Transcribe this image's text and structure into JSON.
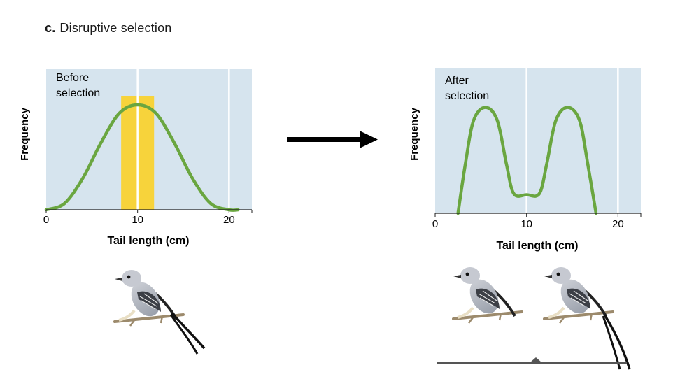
{
  "header": {
    "letter": "c.",
    "title": "Disruptive selection"
  },
  "chart_data": [
    {
      "type": "line",
      "title": "Before selection",
      "title_lines": [
        "Before",
        "selection"
      ],
      "xlabel": "Tail length (cm)",
      "ylabel": "Frequency",
      "xlim": [
        0,
        22.5
      ],
      "xticks": [
        "0",
        "10",
        "20"
      ],
      "x_tick_values": [
        0,
        10,
        20
      ],
      "grid_lines_x": [
        10,
        20
      ],
      "highlight_range": [
        8.2,
        11.8
      ],
      "highlight_color": "#f7d33b",
      "line_color": "#6aa640",
      "background_color": "#d6e4ee",
      "curve": {
        "x": [
          0,
          2,
          4,
          6,
          8,
          10,
          12,
          14,
          16,
          18,
          20,
          21
        ],
        "y": [
          0.0,
          0.06,
          0.3,
          0.64,
          0.92,
          1.0,
          0.92,
          0.64,
          0.3,
          0.06,
          0.0,
          0.0
        ]
      }
    },
    {
      "type": "line",
      "title": "After selection",
      "title_lines": [
        "After",
        "selection"
      ],
      "xlabel": "Tail length (cm)",
      "ylabel": "Frequency",
      "xlim": [
        0,
        22.5
      ],
      "xticks": [
        "0",
        "10",
        "20"
      ],
      "x_tick_values": [
        0,
        10,
        20
      ],
      "grid_lines_x": [
        10,
        20
      ],
      "line_color": "#6aa640",
      "background_color": "#d6e4ee",
      "curve": {
        "x": [
          2.5,
          3.3,
          4.2,
          5.5,
          6.8,
          7.8,
          8.6,
          10,
          11.4,
          12.2,
          13.2,
          14.5,
          15.8,
          16.7,
          17.6
        ],
        "y": [
          0.0,
          0.45,
          0.85,
          0.97,
          0.85,
          0.45,
          0.18,
          0.17,
          0.18,
          0.45,
          0.85,
          0.97,
          0.85,
          0.45,
          0.0
        ]
      }
    }
  ],
  "icons": {
    "arrow": "right-arrow-icon",
    "bird": "scissor-tailed-flycatcher"
  }
}
